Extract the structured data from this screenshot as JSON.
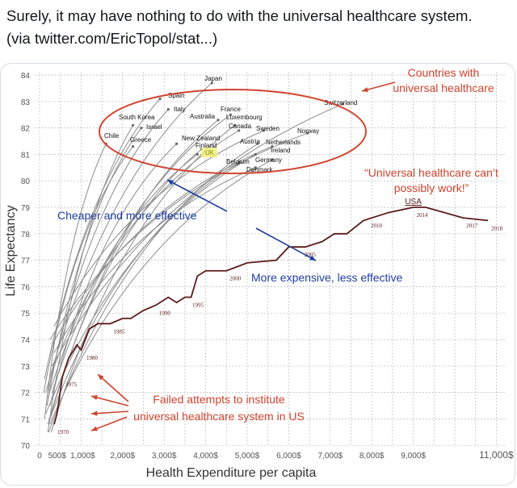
{
  "tweet": {
    "line1": "Surely, it may have nothing to do with the universal healthcare system.",
    "line2": "(via twitter.com/EricTopol/stat...)"
  },
  "chart_data": {
    "type": "line",
    "xlabel": "Health Expenditure per capita",
    "ylabel": "Life Expectancy",
    "xlim": [
      0,
      11500
    ],
    "ylim": [
      70,
      84
    ],
    "grid": true,
    "x_ticks": [
      {
        "value": 0,
        "label": "0"
      },
      {
        "value": 500,
        "label": "500$"
      },
      {
        "value": 1000,
        "label": "1,000$"
      },
      {
        "value": 2000,
        "label": "2,000$"
      },
      {
        "value": 3000,
        "label": "3,000$"
      },
      {
        "value": 4000,
        "label": "4,000$"
      },
      {
        "value": 5000,
        "label": "5,000$"
      },
      {
        "value": 6000,
        "label": "6,000$"
      },
      {
        "value": 7000,
        "label": "7,000$"
      },
      {
        "value": 8000,
        "label": "8,000$"
      },
      {
        "value": 9000,
        "label": "9,000$"
      },
      {
        "value": 11000,
        "label": "11,000$"
      }
    ],
    "y_ticks": [
      70,
      71,
      72,
      73,
      74,
      75,
      76,
      77,
      78,
      79,
      80,
      81,
      82,
      83,
      84
    ],
    "usa": {
      "name": "USA",
      "color": "#5a1a1a",
      "points": [
        [
          350,
          70.8
        ],
        [
          420,
          71.2
        ],
        [
          550,
          72.6
        ],
        [
          700,
          73.3
        ],
        [
          900,
          73.8
        ],
        [
          1000,
          73.6
        ],
        [
          1200,
          74.4
        ],
        [
          1400,
          74.6
        ],
        [
          1700,
          74.6
        ],
        [
          2000,
          74.8
        ],
        [
          2200,
          74.8
        ],
        [
          2500,
          75.1
        ],
        [
          2800,
          75.3
        ],
        [
          3100,
          75.6
        ],
        [
          3300,
          75.4
        ],
        [
          3500,
          75.6
        ],
        [
          3650,
          75.6
        ],
        [
          3800,
          76.4
        ],
        [
          4000,
          76.6
        ],
        [
          4500,
          76.6
        ],
        [
          5000,
          76.9
        ],
        [
          5700,
          77.0
        ],
        [
          6000,
          77.5
        ],
        [
          6400,
          77.5
        ],
        [
          6800,
          77.7
        ],
        [
          7100,
          78.0
        ],
        [
          7400,
          78.0
        ],
        [
          7800,
          78.5
        ],
        [
          8400,
          78.8
        ],
        [
          9000,
          79.0
        ],
        [
          9300,
          79.0
        ],
        [
          10200,
          78.6
        ],
        [
          10800,
          78.5
        ]
      ],
      "year_labels": [
        {
          "label": "1970",
          "x": 350,
          "y": 70.8
        },
        {
          "label": "1975",
          "x": 550,
          "y": 72.6
        },
        {
          "label": "1980",
          "x": 1050,
          "y": 73.6
        },
        {
          "label": "1985",
          "x": 1700,
          "y": 74.6
        },
        {
          "label": "1990",
          "x": 2800,
          "y": 75.3
        },
        {
          "label": "1995",
          "x": 3600,
          "y": 75.6
        },
        {
          "label": "2000",
          "x": 4500,
          "y": 76.6
        },
        {
          "label": "2005",
          "x": 6300,
          "y": 77.5
        },
        {
          "label": "2010",
          "x": 7900,
          "y": 78.6
        },
        {
          "label": "2014",
          "x": 9000,
          "y": 79.0
        },
        {
          "label": "2017",
          "x": 10200,
          "y": 78.6
        },
        {
          "label": "2018",
          "x": 10800,
          "y": 78.5
        }
      ]
    },
    "countries": [
      {
        "name": "Japan",
        "start": [
          150,
          72.0
        ],
        "end": [
          4150,
          83.7
        ]
      },
      {
        "name": "Spain",
        "start": [
          120,
          72.5
        ],
        "end": [
          2900,
          83.1
        ]
      },
      {
        "name": "Italy",
        "start": [
          200,
          72.0
        ],
        "end": [
          3100,
          82.7
        ]
      },
      {
        "name": "South Korea",
        "start": [
          200,
          70.5
        ],
        "end": [
          2250,
          82.1
        ]
      },
      {
        "name": "Israel",
        "start": [
          180,
          71.5
        ],
        "end": [
          2450,
          82.0
        ]
      },
      {
        "name": "Chile",
        "start": [
          120,
          71.0
        ],
        "end": [
          1600,
          81.4
        ]
      },
      {
        "name": "Greece",
        "start": [
          100,
          72.0
        ],
        "end": [
          2250,
          81.3
        ]
      },
      {
        "name": "Australia",
        "start": [
          250,
          71.0
        ],
        "end": [
          4300,
          82.3
        ]
      },
      {
        "name": "France",
        "start": [
          300,
          72.0
        ],
        "end": [
          4600,
          82.5
        ]
      },
      {
        "name": "Luxembourg",
        "start": [
          280,
          70.5
        ],
        "end": [
          4700,
          82.1
        ]
      },
      {
        "name": "Canada",
        "start": [
          300,
          72.8
        ],
        "end": [
          4800,
          81.9
        ]
      },
      {
        "name": "Sweden",
        "start": [
          350,
          74.5
        ],
        "end": [
          5400,
          81.9
        ]
      },
      {
        "name": "Norway",
        "start": [
          250,
          74.0
        ],
        "end": [
          6450,
          81.8
        ]
      },
      {
        "name": "New Zealand",
        "start": [
          250,
          71.5
        ],
        "end": [
          3300,
          81.4
        ]
      },
      {
        "name": "Finland",
        "start": [
          200,
          70.8
        ],
        "end": [
          3900,
          81.2
        ]
      },
      {
        "name": "UK",
        "start": [
          200,
          71.8
        ],
        "end": [
          3800,
          81.0
        ]
      },
      {
        "name": "Austria",
        "start": [
          220,
          70.5
        ],
        "end": [
          5250,
          81.4
        ]
      },
      {
        "name": "Netherlands",
        "start": [
          300,
          73.8
        ],
        "end": [
          5600,
          81.3
        ]
      },
      {
        "name": "Ireland",
        "start": [
          150,
          71.2
        ],
        "end": [
          5200,
          81.0
        ]
      },
      {
        "name": "Germany",
        "start": [
          250,
          70.8
        ],
        "end": [
          5600,
          80.8
        ]
      },
      {
        "name": "Belgium",
        "start": [
          250,
          71.0
        ],
        "end": [
          4800,
          80.7
        ]
      },
      {
        "name": "Denmark",
        "start": [
          350,
          73.5
        ],
        "end": [
          5200,
          80.5
        ]
      },
      {
        "name": "Switzerland",
        "start": [
          300,
          73.0
        ],
        "end": [
          7300,
          82.9
        ]
      }
    ],
    "highlight": {
      "name": "UK",
      "color": "#f5f07a"
    },
    "annotations": {
      "universal": "Countries with universal healthcare",
      "universal_l1": "Countries with",
      "universal_l2": "universal healthcare",
      "cant_work_l1": "“Universal healthcare can’t",
      "cant_work_l2": "possibly work!”",
      "cheaper": "Cheaper and more effective",
      "expensive": "More expensive, less effective",
      "failed_l1": "Failed attempts to institute",
      "failed_l2": "universal healthcare system in US"
    },
    "colors": {
      "red": "#d0432f",
      "blue": "#1f3e9e",
      "grid": "#bbbbbb",
      "country_line": "#8c8c8c"
    }
  }
}
